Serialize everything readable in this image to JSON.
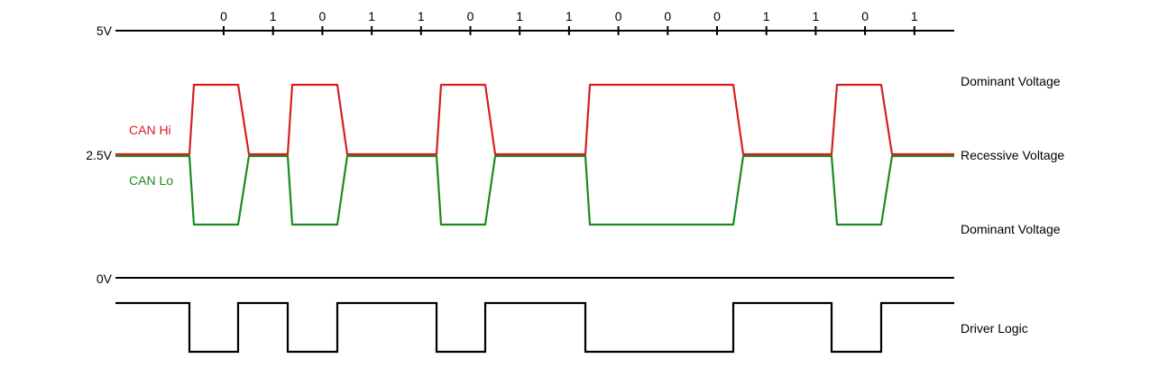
{
  "levels": {
    "five_volt": "5V",
    "half_volt": "2.5V",
    "zero_volt": "0V"
  },
  "bits": [
    "0",
    "1",
    "0",
    "1",
    "1",
    "0",
    "1",
    "1",
    "0",
    "0",
    "0",
    "1",
    "1",
    "0",
    "1"
  ],
  "labels": {
    "can_hi": "CAN Hi",
    "can_lo": "CAN Lo",
    "dominant_top": "Dominant Voltage",
    "recessive": "Recessive Voltage",
    "dominant_bottom": "Dominant Voltage",
    "driver_logic": "Driver Logic"
  },
  "colors": {
    "can_hi": "#d42020",
    "can_lo": "#1e8a1e",
    "axis": "#000000"
  }
}
